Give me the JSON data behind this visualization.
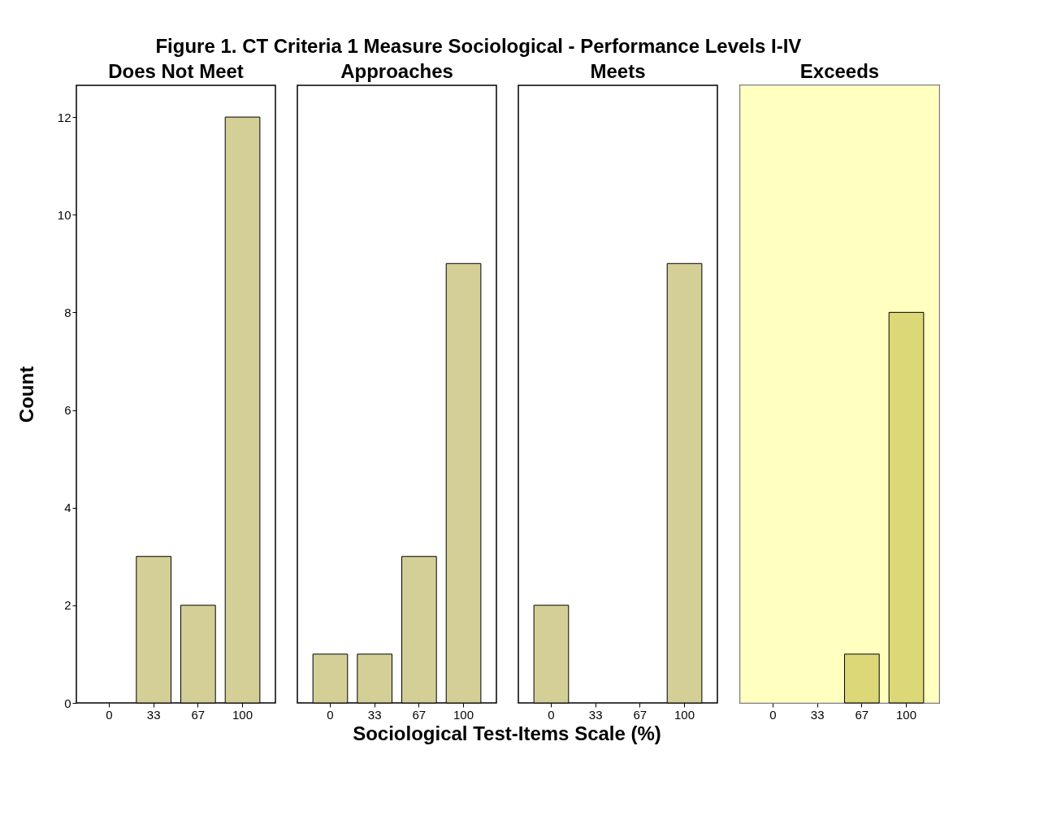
{
  "chart_data": [
    {
      "type": "bar",
      "title": "Does Not Meet",
      "ylabel": "Count",
      "xlabel": "Sociological Test-Items Scale (%)",
      "annotations": [
        "Figure 1. CT  Criteria 1 Measure Sociological - Performance Levels I-IV"
      ],
      "categories": [
        "0",
        "33",
        "67",
        "100"
      ],
      "values": [
        0,
        3,
        2,
        12
      ],
      "color": "#d4cf96",
      "ylim": [
        0,
        12.65
      ],
      "yticks": [
        0,
        2,
        4,
        6,
        8,
        10,
        12
      ]
    },
    {
      "type": "bar",
      "title": "Approaches",
      "categories": [
        "0",
        "33",
        "67",
        "100"
      ],
      "values": [
        1,
        1,
        3,
        9
      ],
      "color": "#d4cf96",
      "ylim": [
        0,
        12.65
      ],
      "yticks": [
        0,
        2,
        4,
        6,
        8,
        10,
        12
      ],
      "tick_labels": "x"
    },
    {
      "type": "bar",
      "title": "Meets",
      "categories": [
        "0",
        "33",
        "67",
        "100"
      ],
      "values": [
        2,
        0,
        0,
        9
      ],
      "color": "#d4cf96",
      "ylim": [
        0,
        12.65
      ],
      "yticks": [
        0,
        2,
        4,
        6,
        8,
        10,
        12
      ],
      "tick_labels": "x"
    },
    {
      "type": "bar",
      "title": "Exceeds",
      "categories": [
        "0",
        "33",
        "67",
        "100"
      ],
      "values": [
        0,
        0,
        1,
        8
      ],
      "color": "#dcd878",
      "ylim": [
        0,
        12.65
      ],
      "yticks": [
        0,
        2,
        4,
        6,
        8,
        10,
        12
      ],
      "tick_labels": "x",
      "bands": [
        {
          "axis": "y",
          "from": 0,
          "to": 12.65,
          "color": "#ffffc0"
        }
      ]
    }
  ]
}
